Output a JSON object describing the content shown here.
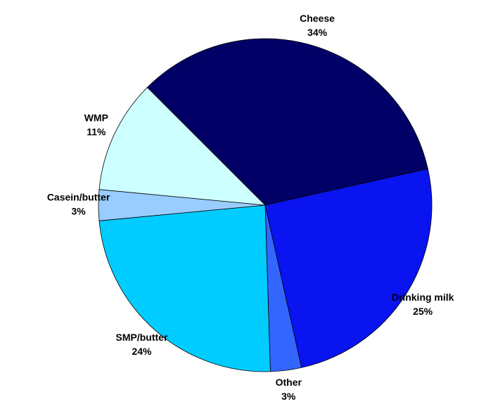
{
  "chart_data": {
    "type": "pie",
    "categories": [
      "Cheese",
      "Drinking milk",
      "Other",
      "SMP/butter",
      "Casein/butter",
      "WMP"
    ],
    "values": [
      34,
      25,
      3,
      24,
      3,
      11
    ],
    "value_labels": [
      "34%",
      "25%",
      "3%",
      "24%",
      "3%",
      "11%"
    ],
    "colors": [
      "#000066",
      "#0a14f0",
      "#3366ff",
      "#00ccff",
      "#99ccff",
      "#ccffff"
    ]
  }
}
